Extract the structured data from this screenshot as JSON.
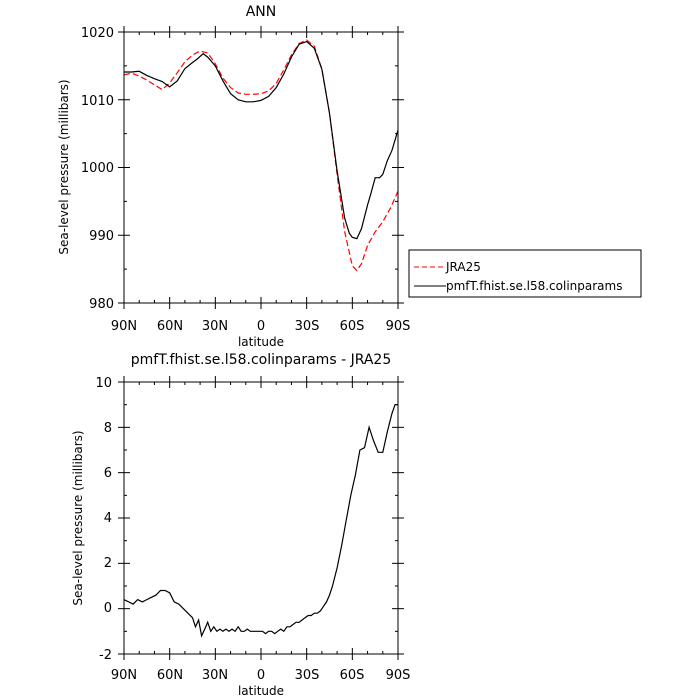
{
  "chart_data": [
    {
      "type": "line",
      "title": "ANN",
      "xlabel": "latitude",
      "ylabel": "Sea-level pressure (millibars)",
      "x_tick_labels": [
        "90N",
        "60N",
        "30N",
        "0",
        "30S",
        "60S",
        "90S"
      ],
      "x_tick_values": [
        90,
        60,
        30,
        0,
        -30,
        -60,
        -90
      ],
      "xlim": [
        90,
        -90
      ],
      "ylim": [
        980,
        1020
      ],
      "y_ticks": [
        980,
        990,
        1000,
        1010,
        1020
      ],
      "grid": false,
      "legend_placement": "right",
      "series": [
        {
          "name": "JRA25",
          "color": "#ff0000",
          "dash": "dashed",
          "x": [
            90,
            85,
            80,
            75,
            70,
            65,
            60,
            55,
            50,
            45,
            40,
            35,
            30,
            25,
            20,
            15,
            10,
            5,
            0,
            -5,
            -10,
            -15,
            -20,
            -25,
            -30,
            -35,
            -40,
            -45,
            -50,
            -55,
            -60,
            -63,
            -66,
            -70,
            -75,
            -80,
            -85,
            -90
          ],
          "y": [
            1013.7,
            1013.9,
            1013.5,
            1012.9,
            1012.2,
            1011.5,
            1012.5,
            1014.0,
            1015.6,
            1016.6,
            1017.2,
            1016.9,
            1015.3,
            1013.2,
            1011.8,
            1011.0,
            1010.8,
            1010.8,
            1010.9,
            1011.3,
            1012.4,
            1014.4,
            1016.6,
            1018.3,
            1018.8,
            1017.9,
            1014.5,
            1008.0,
            999.0,
            990.5,
            985.5,
            984.8,
            985.8,
            988.5,
            990.5,
            992.0,
            994.0,
            996.5
          ]
        },
        {
          "name": "pmfT.fhist.se.l58.colinparams",
          "color": "#000000",
          "dash": "solid",
          "x": [
            90,
            85,
            80,
            75,
            70,
            65,
            60,
            55,
            50,
            45,
            42,
            38,
            35,
            30,
            25,
            20,
            15,
            10,
            5,
            0,
            -5,
            -10,
            -15,
            -20,
            -25,
            -30,
            -35,
            -40,
            -45,
            -50,
            -55,
            -58,
            -60,
            -63,
            -66,
            -70,
            -72,
            -75,
            -78,
            -80,
            -83,
            -86,
            -90
          ],
          "y": [
            1014.1,
            1014.1,
            1014.2,
            1013.6,
            1013.1,
            1012.7,
            1011.9,
            1012.8,
            1014.6,
            1015.5,
            1016.0,
            1016.8,
            1016.3,
            1015.0,
            1012.8,
            1010.9,
            1010.0,
            1009.7,
            1009.7,
            1009.9,
            1010.5,
            1011.8,
            1013.8,
            1016.3,
            1018.2,
            1018.6,
            1017.6,
            1014.5,
            1008.0,
            999.5,
            992.5,
            990.3,
            989.7,
            989.5,
            991.0,
            994.5,
            996.0,
            998.5,
            998.5,
            999.0,
            1001.0,
            1002.5,
            1005.5
          ]
        }
      ]
    },
    {
      "type": "line",
      "title": "pmfT.fhist.se.l58.colinparams - JRA25",
      "xlabel": "latitude",
      "ylabel": "Sea-level pressure (millibars)",
      "x_tick_labels": [
        "90N",
        "60N",
        "30N",
        "0",
        "30S",
        "60S",
        "90S"
      ],
      "x_tick_values": [
        90,
        60,
        30,
        0,
        -30,
        -60,
        -90
      ],
      "xlim": [
        90,
        -90
      ],
      "ylim": [
        -2,
        10
      ],
      "y_ticks": [
        -2,
        0,
        2,
        4,
        6,
        8,
        10
      ],
      "grid": false,
      "series": [
        {
          "color": "#000000",
          "dash": "solid",
          "x": [
            90,
            87,
            84,
            81,
            78,
            75,
            72,
            69,
            66,
            63,
            60,
            57,
            54,
            51,
            48,
            45,
            43,
            41,
            39,
            37,
            35,
            33,
            31,
            29,
            27,
            25,
            23,
            21,
            19,
            17,
            15,
            13,
            11,
            9,
            7,
            5,
            3,
            1,
            -1,
            -3,
            -5,
            -7,
            -9,
            -11,
            -13,
            -15,
            -17,
            -19,
            -21,
            -23,
            -25,
            -27,
            -29,
            -31,
            -33,
            -35,
            -37,
            -39,
            -41,
            -43,
            -45,
            -47,
            -50,
            -53,
            -56,
            -59,
            -62,
            -65,
            -68,
            -71,
            -74,
            -77,
            -80,
            -83,
            -86,
            -88,
            -90
          ],
          "y": [
            0.4,
            0.3,
            0.2,
            0.4,
            0.3,
            0.4,
            0.5,
            0.6,
            0.8,
            0.8,
            0.7,
            0.3,
            0.2,
            0.0,
            -0.2,
            -0.4,
            -0.8,
            -0.5,
            -1.2,
            -0.9,
            -0.6,
            -1.0,
            -0.8,
            -1.0,
            -0.9,
            -1.0,
            -0.9,
            -1.0,
            -0.9,
            -1.0,
            -0.8,
            -1.0,
            -1.0,
            -0.9,
            -1.0,
            -1.0,
            -1.0,
            -1.0,
            -1.0,
            -1.1,
            -1.0,
            -1.0,
            -1.1,
            -1.0,
            -0.9,
            -1.0,
            -0.8,
            -0.8,
            -0.7,
            -0.6,
            -0.6,
            -0.5,
            -0.4,
            -0.3,
            -0.3,
            -0.2,
            -0.2,
            -0.1,
            0.1,
            0.3,
            0.6,
            1.0,
            1.8,
            2.8,
            3.9,
            5.0,
            5.9,
            7.0,
            7.1,
            8.0,
            7.4,
            6.9,
            6.9,
            7.8,
            8.6,
            9.0,
            9.0
          ]
        }
      ]
    }
  ]
}
